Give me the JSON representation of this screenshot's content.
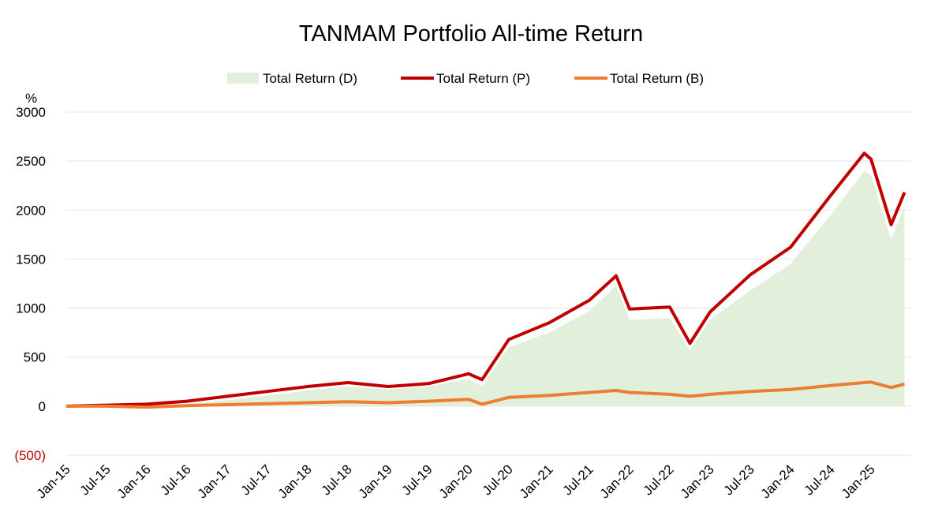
{
  "chart_data": {
    "type": "line",
    "title": "TANMAM Portfolio All-time Return",
    "y_unit": "%",
    "ylim": [
      -500,
      3000
    ],
    "y_ticks": [
      {
        "value": 3000,
        "label": "3000"
      },
      {
        "value": 2500,
        "label": "2500"
      },
      {
        "value": 2000,
        "label": "2000"
      },
      {
        "value": 1500,
        "label": "1500"
      },
      {
        "value": 1000,
        "label": "1000"
      },
      {
        "value": 500,
        "label": "500"
      },
      {
        "value": 0,
        "label": "0"
      },
      {
        "value": -500,
        "label": "(500)"
      }
    ],
    "x_ticks": [
      "Jan-15",
      "Jul-15",
      "Jan-16",
      "Jul-16",
      "Jan-17",
      "Jul-17",
      "Jan-18",
      "Jul-18",
      "Jan-19",
      "Jul-19",
      "Jan-20",
      "Jul-20",
      "Jan-21",
      "Jul-21",
      "Jan-22",
      "Jul-22",
      "Jan-23",
      "Jul-23",
      "Jan-24",
      "Jul-24",
      "Jan-25"
    ],
    "grid": true,
    "legend_position": "top",
    "series": [
      {
        "name": "Total Return (D)",
        "style": "area",
        "color": "#e2efda",
        "x": [
          "2015-01",
          "2015-07",
          "2016-01",
          "2016-07",
          "2017-01",
          "2017-07",
          "2018-01",
          "2018-07",
          "2019-01",
          "2019-07",
          "2020-01",
          "2020-03",
          "2020-07",
          "2021-01",
          "2021-07",
          "2021-11",
          "2022-01",
          "2022-07",
          "2022-10",
          "2023-01",
          "2023-07",
          "2024-01",
          "2024-07",
          "2024-12",
          "2025-01",
          "2025-04",
          "2025-06"
        ],
        "values": [
          0,
          5,
          10,
          25,
          60,
          110,
          160,
          200,
          170,
          200,
          280,
          200,
          600,
          750,
          970,
          1230,
          880,
          900,
          570,
          880,
          1180,
          1450,
          1950,
          2400,
          2350,
          1700,
          2050
        ]
      },
      {
        "name": "Total Return (P)",
        "style": "line",
        "color": "#c00000",
        "x": [
          "2015-01",
          "2015-07",
          "2016-01",
          "2016-07",
          "2017-01",
          "2017-07",
          "2018-01",
          "2018-07",
          "2019-01",
          "2019-07",
          "2020-01",
          "2020-03",
          "2020-07",
          "2021-01",
          "2021-07",
          "2021-11",
          "2022-01",
          "2022-07",
          "2022-10",
          "2023-01",
          "2023-07",
          "2024-01",
          "2024-07",
          "2024-12",
          "2025-01",
          "2025-04",
          "2025-06"
        ],
        "values": [
          0,
          10,
          20,
          50,
          100,
          150,
          200,
          240,
          200,
          230,
          330,
          270,
          680,
          850,
          1080,
          1330,
          990,
          1010,
          640,
          960,
          1340,
          1620,
          2150,
          2580,
          2520,
          1850,
          2180
        ]
      },
      {
        "name": "Total Return (B)",
        "style": "line",
        "color": "#ed7d31",
        "x": [
          "2015-01",
          "2015-07",
          "2016-01",
          "2016-07",
          "2017-01",
          "2017-07",
          "2018-01",
          "2018-07",
          "2019-01",
          "2019-07",
          "2020-01",
          "2020-03",
          "2020-07",
          "2021-01",
          "2021-07",
          "2021-11",
          "2022-01",
          "2022-07",
          "2022-10",
          "2023-01",
          "2023-07",
          "2024-01",
          "2024-07",
          "2024-12",
          "2025-01",
          "2025-04",
          "2025-06"
        ],
        "values": [
          0,
          0,
          -10,
          5,
          15,
          25,
          35,
          45,
          35,
          50,
          70,
          20,
          90,
          110,
          140,
          160,
          140,
          120,
          100,
          120,
          150,
          170,
          210,
          240,
          245,
          190,
          225
        ]
      }
    ]
  }
}
